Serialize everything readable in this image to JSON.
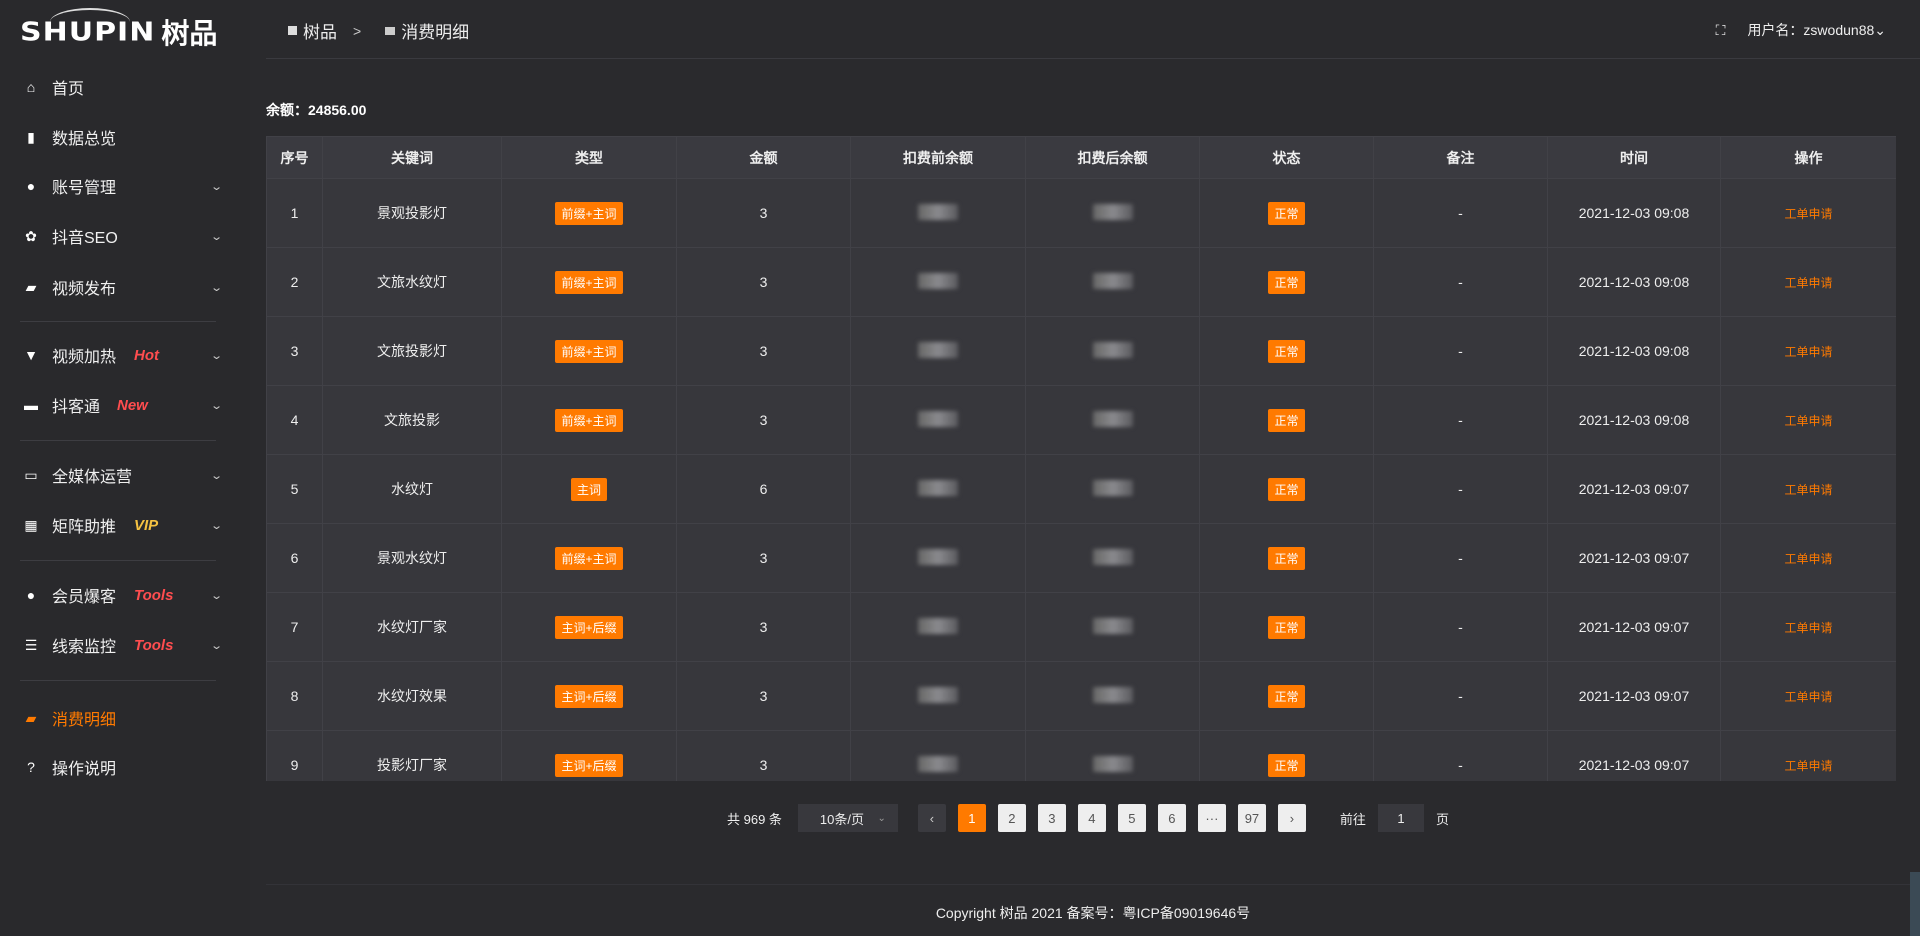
{
  "brand": {
    "logo_en": "SHUPIN",
    "logo_cn": "树品"
  },
  "sidebar": {
    "items": [
      {
        "label": "首页",
        "icon": "home-icon",
        "glyph": "⌂"
      },
      {
        "label": "数据总览",
        "icon": "bar-chart-icon",
        "glyph": "▮"
      },
      {
        "label": "账号管理",
        "icon": "user-icon",
        "glyph": "●",
        "chevron": "⌄"
      },
      {
        "label": "抖音SEO",
        "icon": "gear-icon",
        "glyph": "✿",
        "chevron": "⌄"
      },
      {
        "label": "视频发布",
        "icon": "video-upload-icon",
        "glyph": "▰",
        "chevron": "⌄"
      },
      {
        "label": "视频加热",
        "icon": "flag-icon",
        "glyph": "▼",
        "tag": "Hot",
        "chevron": "⌄"
      },
      {
        "label": "抖客通",
        "icon": "message-icon",
        "glyph": "▬",
        "tag": "New",
        "chevron": "⌄"
      },
      {
        "label": "全媒体运营",
        "icon": "monitor-icon",
        "glyph": "▭",
        "chevron": "⌄"
      },
      {
        "label": "矩阵助推",
        "icon": "grid-icon",
        "glyph": "▦",
        "tag": "VIP",
        "chevron": "⌄"
      },
      {
        "label": "会员爆客",
        "icon": "user-icon",
        "glyph": "●",
        "tag": "Tools",
        "chevron": "⌄"
      },
      {
        "label": "线索监控",
        "icon": "sliders-icon",
        "glyph": "☰",
        "tag": "Tools",
        "chevron": "⌄"
      },
      {
        "label": "消费明细",
        "icon": "wallet-icon",
        "glyph": "▰",
        "active": true
      },
      {
        "label": "操作说明",
        "icon": "help-icon",
        "glyph": "?"
      }
    ]
  },
  "colors": {
    "accent": "#ff7a00",
    "hot": "#ff4d4f",
    "vip": "#f5c242"
  },
  "header": {
    "breadcrumb": [
      "树品",
      "消费明细"
    ],
    "separator": ">",
    "user_label": "用户名：zswodun88",
    "user_chevron": "⌄",
    "fullscreen_icon": "⛶"
  },
  "balance": "余额：24856.00",
  "table": {
    "columns": [
      "序号",
      "关键词",
      "类型",
      "金额",
      "扣费前余额",
      "扣费后余额",
      "状态",
      "备注",
      "时间",
      "操作"
    ],
    "rows": [
      {
        "no": "1",
        "keyword": "景观投影灯",
        "type": "前缀+主词",
        "amount": "3",
        "status": "正常",
        "remark": "-",
        "time": "2021-12-03 09:08",
        "action": "工单申请"
      },
      {
        "no": "2",
        "keyword": "文旅水纹灯",
        "type": "前缀+主词",
        "amount": "3",
        "status": "正常",
        "remark": "-",
        "time": "2021-12-03 09:08",
        "action": "工单申请"
      },
      {
        "no": "3",
        "keyword": "文旅投影灯",
        "type": "前缀+主词",
        "amount": "3",
        "status": "正常",
        "remark": "-",
        "time": "2021-12-03 09:08",
        "action": "工单申请"
      },
      {
        "no": "4",
        "keyword": "文旅投影",
        "type": "前缀+主词",
        "amount": "3",
        "status": "正常",
        "remark": "-",
        "time": "2021-12-03 09:08",
        "action": "工单申请"
      },
      {
        "no": "5",
        "keyword": "水纹灯",
        "type": "主词",
        "amount": "6",
        "status": "正常",
        "remark": "-",
        "time": "2021-12-03 09:07",
        "action": "工单申请"
      },
      {
        "no": "6",
        "keyword": "景观水纹灯",
        "type": "前缀+主词",
        "amount": "3",
        "status": "正常",
        "remark": "-",
        "time": "2021-12-03 09:07",
        "action": "工单申请"
      },
      {
        "no": "7",
        "keyword": "水纹灯厂家",
        "type": "主词+后缀",
        "amount": "3",
        "status": "正常",
        "remark": "-",
        "time": "2021-12-03 09:07",
        "action": "工单申请"
      },
      {
        "no": "8",
        "keyword": "水纹灯效果",
        "type": "主词+后缀",
        "amount": "3",
        "status": "正常",
        "remark": "-",
        "time": "2021-12-03 09:07",
        "action": "工单申请"
      },
      {
        "no": "9",
        "keyword": "投影灯厂家",
        "type": "主词+后缀",
        "amount": "3",
        "status": "正常",
        "remark": "-",
        "time": "2021-12-03 09:07",
        "action": "工单申请"
      }
    ]
  },
  "pagination": {
    "total": "共 969 条",
    "page_size": "10条/页",
    "prev": "‹",
    "next": "›",
    "pages": [
      "1",
      "2",
      "3",
      "4",
      "5",
      "6",
      "···",
      "97"
    ],
    "current": "1",
    "goto_label": "前往",
    "goto_value": "1",
    "goto_suffix": "页"
  },
  "footer": "Copyright 树品 2021 备案号：粤ICP备09019646号"
}
